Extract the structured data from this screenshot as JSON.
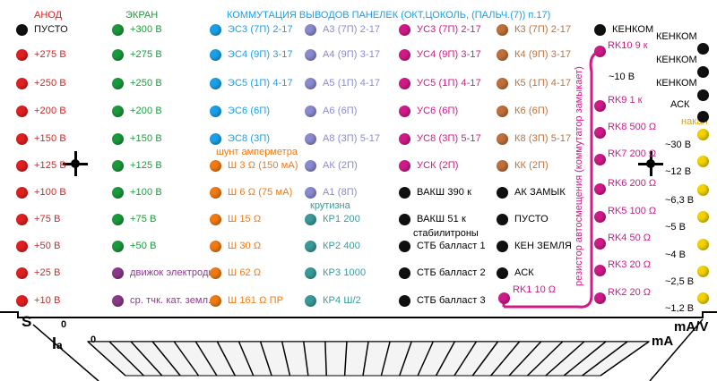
{
  "colors": {
    "red": "#e02020",
    "green": "#1a9a3c",
    "cyan": "#1aa0e6",
    "lavender": "#8a8ad0",
    "magenta": "#d01a8a",
    "brown": "#c0703a",
    "black": "#111111",
    "yellow": "#f2d200",
    "orange": "#f07a14",
    "purple": "#8a3a8a",
    "teal": "#3a9a9a"
  },
  "headers": {
    "anod": "АНОД",
    "ekran": "ЭКРАН",
    "kommut": "КОММУТАЦИЯ ВЫВОДОВ ПАНЕЛЕК (ОКТ,ЦОКОЛЬ, (ПАЛЬЧ.(7)) п.17)",
    "nakal": "накал"
  },
  "anod": [
    "ПУСТО",
    "+275 В",
    "+250 В",
    "+200 В",
    "+150 В",
    "+125 В",
    "+100 В",
    "+75 В",
    "+50 В",
    "+25 В",
    "+10 В"
  ],
  "ekran": [
    "+300 В",
    "+275 В",
    "+250 В",
    "+200 В",
    "+150 В",
    "+125 В",
    "+100 В",
    "+75 В",
    "+50 В"
  ],
  "ekran_extra": [
    "движок электроды",
    "ср. тчк. кат. земл."
  ],
  "col3": [
    "ЭС3 (7П) 2-17",
    "ЭС4 (9П) 3-17",
    "ЭС5 (1П) 4-17",
    "ЭС6 (6П)",
    "ЭС8 (3П)"
  ],
  "shunt_title": "шунт амперметра",
  "shunt": [
    "Ш 3 Ω (150 мА)",
    "Ш 6 Ω (75 мА)",
    "Ш 15 Ω",
    "Ш 30 Ω",
    "Ш 62 Ω",
    "Ш 161 Ω ПР"
  ],
  "col4": [
    "А3 (7П) 2-17",
    "А4 (9П) 3-17",
    "А5 (1П) 4-17",
    "А6 (6П)",
    "А8 (3П) 5-17",
    "АК (2П)",
    "А1 (8П)"
  ],
  "krutizna_title": "крутизна",
  "kr": [
    "КР1 200",
    "КР2 400",
    "КР3 1000",
    "КР4 Ш/2"
  ],
  "col5": [
    "УС3 (7П) 2-17",
    "УС4 (9П) 3-17",
    "УС5 (1П) 4-17",
    "УС6 (6П)",
    "УС8 (3П) 5-17",
    "УСК (2П)"
  ],
  "col5_black": [
    "ВАКШ 390 к",
    "ВАКШ 51 к"
  ],
  "stab_title": "стабилитроны",
  "stb": [
    "СТБ балласт 1",
    "СТБ балласт 2",
    "СТБ балласт 3"
  ],
  "col6": [
    "К3 (7П) 2-17",
    "К4 (9П) 3-17",
    "К5 (1П) 4-17",
    "К6 (6П)",
    "К8 (3П) 5-17",
    "КК (2П)"
  ],
  "col6_black": [
    "АК ЗАМЫК",
    "ПУСТО",
    "КЕН ЗЕМЛЯ",
    "АСК"
  ],
  "col7_top": "КЕНКОМ",
  "rk": [
    "RK10 9 к",
    "RK9 1 к",
    "RK8 500 Ω",
    "RK7 200 Ω",
    "RK6 200 Ω",
    "RK5 100 Ω",
    "RK4 50 Ω",
    "RK3 20 Ω",
    "RK2 20 Ω",
    "RK1 10 Ω"
  ],
  "rk_note": "~10 В",
  "vertical_text": "резистор автосмещения (коммутатор замыкает)",
  "col8_black": [
    "КЕНКОМ",
    "КЕНКОМ",
    "КЕНКОМ",
    "АСК"
  ],
  "nakal": [
    "~30 В",
    "~12 В",
    "~6,3 В",
    "~5 В",
    "~4 В",
    "~2,5 В",
    "~1,2 В"
  ],
  "scale": {
    "s": "S",
    "zero1": "0",
    "ia": "I",
    "ia_sub": "a",
    "zero2": "0",
    "mav": "mA/V",
    "ma": "mA"
  }
}
